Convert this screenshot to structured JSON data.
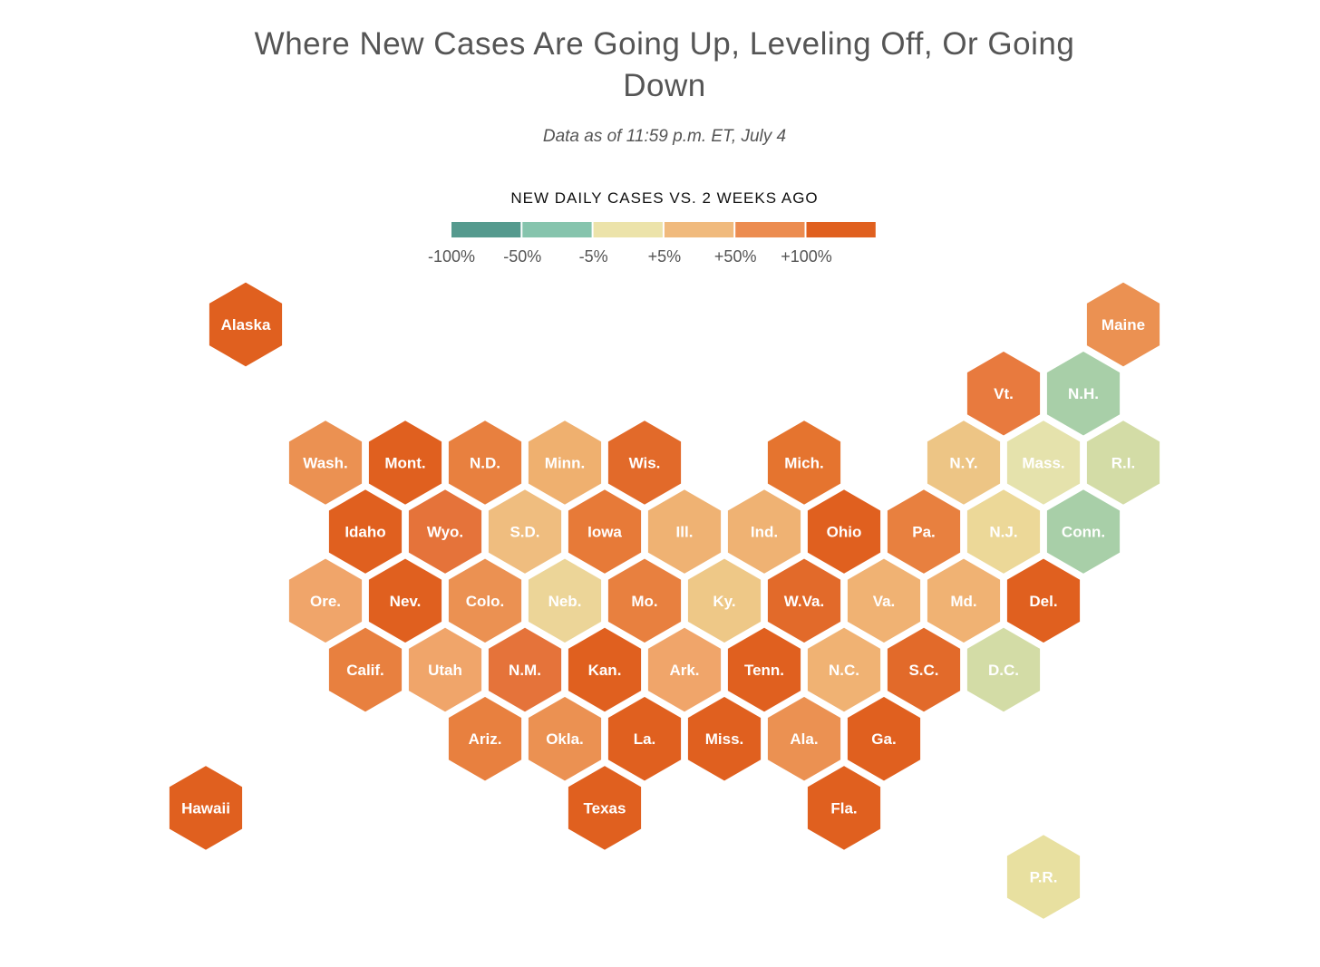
{
  "header": {
    "title": "Where New Cases Are Going Up, Leveling Off, Or Going Down",
    "subtitle": "Data as of 11:59 p.m. ET, July 4"
  },
  "legend": {
    "title": "NEW DAILY CASES VS. 2 WEEKS AGO",
    "colors": [
      "#559a8e",
      "#86c4ad",
      "#ece3aa",
      "#f0ba7d",
      "#ec8c50",
      "#e0601f"
    ],
    "labels": [
      "-100%",
      "-50%",
      "-5%",
      "+5%",
      "+50%",
      "+100%"
    ]
  },
  "hexes": [
    {
      "label": "Alaska",
      "color": "#e0601f"
    },
    {
      "label": "Maine",
      "color": "#eb9152"
    },
    {
      "label": "Vt.",
      "color": "#e87a3e"
    },
    {
      "label": "N.H.",
      "color": "#a8cfa8"
    },
    {
      "label": "Wash.",
      "color": "#eb9152"
    },
    {
      "label": "Mont.",
      "color": "#e0601f"
    },
    {
      "label": "N.D.",
      "color": "#e8803f"
    },
    {
      "label": "Minn.",
      "color": "#efb06f"
    },
    {
      "label": "Wis.",
      "color": "#e26a2a"
    },
    {
      "label": "Mich.",
      "color": "#e5742f"
    },
    {
      "label": "N.Y.",
      "color": "#edc585"
    },
    {
      "label": "Mass.",
      "color": "#e5e2ac"
    },
    {
      "label": "R.I.",
      "color": "#d3dca6"
    },
    {
      "label": "Idaho",
      "color": "#e0601f"
    },
    {
      "label": "Wyo.",
      "color": "#e5733a"
    },
    {
      "label": "S.D.",
      "color": "#efbd7f"
    },
    {
      "label": "Iowa",
      "color": "#e77a38"
    },
    {
      "label": "Ill.",
      "color": "#efb273"
    },
    {
      "label": "Ind.",
      "color": "#efb273"
    },
    {
      "label": "Ohio",
      "color": "#e0601f"
    },
    {
      "label": "Pa.",
      "color": "#e8803f"
    },
    {
      "label": "N.J.",
      "color": "#ecd898"
    },
    {
      "label": "Conn.",
      "color": "#a8cfa8"
    },
    {
      "label": "Ore.",
      "color": "#f0a56a"
    },
    {
      "label": "Nev.",
      "color": "#e0601f"
    },
    {
      "label": "Colo.",
      "color": "#eb9152"
    },
    {
      "label": "Neb.",
      "color": "#ecd598"
    },
    {
      "label": "Mo.",
      "color": "#e8803f"
    },
    {
      "label": "Ky.",
      "color": "#eec887"
    },
    {
      "label": "W.Va.",
      "color": "#e26a2a"
    },
    {
      "label": "Va.",
      "color": "#f0b273"
    },
    {
      "label": "Md.",
      "color": "#f0b273"
    },
    {
      "label": "Del.",
      "color": "#e0601f"
    },
    {
      "label": "Calif.",
      "color": "#e8803f"
    },
    {
      "label": "Utah",
      "color": "#f0a56a"
    },
    {
      "label": "N.M.",
      "color": "#e5733a"
    },
    {
      "label": "Kan.",
      "color": "#e0601f"
    },
    {
      "label": "Ark.",
      "color": "#f0a56a"
    },
    {
      "label": "Tenn.",
      "color": "#e0601f"
    },
    {
      "label": "N.C.",
      "color": "#f0b273"
    },
    {
      "label": "S.C.",
      "color": "#e26a2a"
    },
    {
      "label": "D.C.",
      "color": "#d3dca6"
    },
    {
      "label": "Ariz.",
      "color": "#e8803f"
    },
    {
      "label": "Okla.",
      "color": "#eb9152"
    },
    {
      "label": "La.",
      "color": "#e0601f"
    },
    {
      "label": "Miss.",
      "color": "#e0601f"
    },
    {
      "label": "Ala.",
      "color": "#eb9152"
    },
    {
      "label": "Ga.",
      "color": "#e0601f"
    },
    {
      "label": "Hawaii",
      "color": "#e0601f"
    },
    {
      "label": "Texas",
      "color": "#e0601f"
    },
    {
      "label": "Fla.",
      "color": "#e0601f"
    },
    {
      "label": "P.R.",
      "color": "#e8e0a0"
    }
  ]
}
